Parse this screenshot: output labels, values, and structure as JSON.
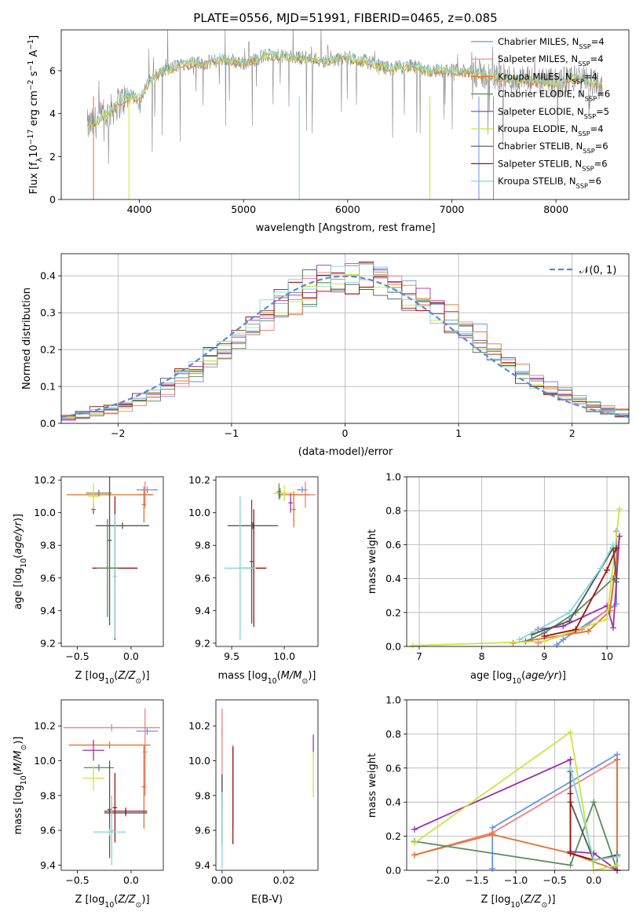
{
  "colors": [
    "#6495ed",
    "#f08080",
    "#e8702a",
    "#5b8a5b",
    "#9b30a8",
    "#c8e63c",
    "#555555",
    "#a01010",
    "#80d8d8"
  ],
  "chart_data": [
    {
      "id": "spectrum",
      "type": "line",
      "title": "PLATE=0556, MJD=51991, FIBERID=0465, z=0.085",
      "xlabel": "wavelength [Angstrom, rest frame]",
      "ylabel": "Flux [fλ 10⁻¹⁷ erg cm⁻² s⁻¹ A⁻¹]",
      "xlim": [
        3250,
        8700
      ],
      "ylim": [
        0,
        7.9
      ],
      "xticks": [
        4000,
        5000,
        6000,
        7000,
        8000
      ],
      "yticks": [
        0,
        2,
        4,
        6
      ],
      "grid": false,
      "legend_position": "top-right",
      "series": [
        {
          "name": "Chabrier MILES, N_SSP=4"
        },
        {
          "name": "Salpeter MILES, N_SSP=4"
        },
        {
          "name": "Kroupa MILES, N_SSP=4"
        },
        {
          "name": "Chabrier ELODIE, N_SSP=6"
        },
        {
          "name": "Salpeter ELODIE, N_SSP=5"
        },
        {
          "name": "Kroupa ELODIE, N_SSP=4"
        },
        {
          "name": "Chabrier STELIB, N_SSP=6"
        },
        {
          "name": "Salpeter STELIB, N_SSP=6"
        },
        {
          "name": "Kroupa STELIB, N_SSP=6"
        }
      ],
      "continuum": {
        "x": [
          3500,
          3550,
          3600,
          3700,
          3800,
          3900,
          4000,
          4100,
          4200,
          4300,
          4400,
          4500,
          4600,
          4800,
          5000,
          5200,
          5400,
          5600,
          5800,
          6000,
          6200,
          6400,
          6600,
          6800,
          7000,
          7200,
          7400,
          7600,
          7800,
          8000,
          8200,
          8300,
          8450
        ],
        "y": [
          3.4,
          3.5,
          3.7,
          4.0,
          4.5,
          4.8,
          4.7,
          5.5,
          5.9,
          6.1,
          6.3,
          6.4,
          6.3,
          6.55,
          6.35,
          6.7,
          6.65,
          6.6,
          6.45,
          6.6,
          6.4,
          6.1,
          6.2,
          6.0,
          6.0,
          5.9,
          5.7,
          5.6,
          5.5,
          5.4,
          5.7,
          5.5,
          5.3
        ]
      }
    },
    {
      "id": "residuals",
      "type": "line",
      "xlabel": "(data-model)/error",
      "ylabel": "Normed distribution",
      "xlim": [
        -2.5,
        2.5
      ],
      "ylim": [
        0,
        0.46
      ],
      "xticks": [
        -2,
        -1,
        0,
        1,
        2
      ],
      "yticks": [
        0.0,
        0.1,
        0.2,
        0.3,
        0.4
      ],
      "grid": true,
      "legend_position": "top-right",
      "legend_label": "𝒩(0, 1)"
    },
    {
      "id": "age-vs-Z",
      "type": "scatter",
      "xlabel": "Z [log10(Z/Z⊙)]",
      "ylabel": "age  [log10(age/yr)]",
      "xlim": [
        -0.65,
        0.3
      ],
      "ylim": [
        9.18,
        10.22
      ],
      "xticks": [
        -0.5,
        0.0
      ],
      "yticks": [
        9.2,
        9.4,
        9.6,
        9.8,
        10.0,
        10.2
      ],
      "grid": false,
      "points": [
        {
          "s": 0,
          "x": 0.15,
          "y": 10.14,
          "xerr": 0.1,
          "yerr": 0.02
        },
        {
          "s": 1,
          "x": 0.13,
          "y": 10.11,
          "xerr": 0.08,
          "yerr": 0.08
        },
        {
          "s": 2,
          "x": -0.2,
          "y": 10.11,
          "xerr": 0.4,
          "yerr": 0.02
        },
        {
          "s": 2,
          "x": 0.12,
          "y": 10.05,
          "xerr": 0.02,
          "yerr": 0.11
        },
        {
          "s": 3,
          "x": -0.3,
          "y": 10.12,
          "xerr": 0.12,
          "yerr": 0.02
        },
        {
          "s": 4,
          "x": -0.35,
          "y": 10.02,
          "xerr": 0.02,
          "yerr": 0.03
        },
        {
          "s": 5,
          "x": -0.35,
          "y": 10.1,
          "xerr": 0.05,
          "yerr": 0.08
        },
        {
          "s": 6,
          "x": -0.2,
          "y": 9.83,
          "xerr": 0.02,
          "yerr": 0.52
        },
        {
          "s": 6,
          "x": -0.08,
          "y": 9.92,
          "xerr": 0.25,
          "yerr": 0.02
        },
        {
          "s": 7,
          "x": -0.15,
          "y": 9.66,
          "xerr": 0.21,
          "yerr": 0.44
        },
        {
          "s": 8,
          "x": -0.15,
          "y": 9.61,
          "xerr": 0.02,
          "yerr": 0.38
        },
        {
          "s": 3,
          "x": -0.22,
          "y": 9.66,
          "xerr": 0.1,
          "yerr": 0.3
        }
      ]
    },
    {
      "id": "age-vs-mass",
      "type": "scatter",
      "xlabel": "mass [log10(M/M⊙)]",
      "ylabel": "",
      "xlim": [
        9.35,
        10.32
      ],
      "ylim": [
        9.18,
        10.22
      ],
      "xticks": [
        9.5,
        10.0
      ],
      "yticks": [
        9.2,
        9.4,
        9.6,
        9.8,
        10.0,
        10.2
      ],
      "grid": false,
      "points": [
        {
          "s": 0,
          "x": 10.17,
          "y": 10.14,
          "xerr": 0.05,
          "yerr": 0.02
        },
        {
          "s": 1,
          "x": 10.2,
          "y": 10.11,
          "xerr": 0.1,
          "yerr": 0.08
        },
        {
          "s": 2,
          "x": 10.09,
          "y": 10.11,
          "xerr": 0.15,
          "yerr": 0.02
        },
        {
          "s": 2,
          "x": 10.09,
          "y": 10.02,
          "xerr": 0.02,
          "yerr": 0.11
        },
        {
          "s": 3,
          "x": 9.96,
          "y": 10.12,
          "xerr": 0.06,
          "yerr": 0.03
        },
        {
          "s": 4,
          "x": 10.06,
          "y": 10.06,
          "xerr": 0.02,
          "yerr": 0.06
        },
        {
          "s": 5,
          "x": 10.0,
          "y": 10.12,
          "xerr": 0.1,
          "yerr": 0.05
        },
        {
          "s": 6,
          "x": 9.7,
          "y": 9.92,
          "xerr": 0.24,
          "yerr": 0.02
        },
        {
          "s": 6,
          "x": 9.69,
          "y": 9.7,
          "xerr": 0.02,
          "yerr": 0.38
        },
        {
          "s": 7,
          "x": 9.71,
          "y": 9.66,
          "xerr": 0.12,
          "yerr": 0.36
        },
        {
          "s": 8,
          "x": 9.58,
          "y": 9.66,
          "xerr": 0.15,
          "yerr": 0.44
        },
        {
          "s": 3,
          "x": 9.95,
          "y": 10.13,
          "xerr": 0.02,
          "yerr": 0.05
        }
      ]
    },
    {
      "id": "weight-vs-age",
      "type": "line",
      "xlabel": "age  [log10(age/yr)]",
      "ylabel": "mass weight",
      "xlim": [
        6.8,
        10.35
      ],
      "ylim": [
        0,
        1.0
      ],
      "xticks": [
        7,
        8,
        9,
        10
      ],
      "yticks": [
        0.0,
        0.2,
        0.4,
        0.6,
        0.8,
        1.0
      ],
      "grid": true,
      "series": [
        {
          "x": [
            9.2,
            9.3,
            10.15,
            10.15
          ],
          "y": [
            0.01,
            0.04,
            0.25,
            0.68
          ]
        },
        {
          "x": [
            8.9,
            9.6,
            10.05,
            10.2
          ],
          "y": [
            0.02,
            0.1,
            0.23,
            0.65
          ]
        },
        {
          "x": [
            8.5,
            9.7,
            10.05,
            10.2
          ],
          "y": [
            0.02,
            0.09,
            0.21,
            0.65
          ]
        },
        {
          "x": [
            8.7,
            9.0,
            9.5,
            10.1,
            10.15
          ],
          "y": [
            0.03,
            0.08,
            0.2,
            0.4,
            0.38
          ]
        },
        {
          "x": [
            8.9,
            9.3,
            10.0,
            10.1,
            10.2
          ],
          "y": [
            0.1,
            0.12,
            0.24,
            0.11,
            0.65
          ]
        },
        {
          "x": [
            6.9,
            9.0,
            10.0,
            10.2
          ],
          "y": [
            0.005,
            0.03,
            0.16,
            0.81
          ]
        },
        {
          "x": [
            8.8,
            9.4,
            10.1,
            10.15
          ],
          "y": [
            0.07,
            0.15,
            0.58,
            0.4
          ]
        },
        {
          "x": [
            9.0,
            9.5,
            10.0,
            10.15
          ],
          "y": [
            0.06,
            0.1,
            0.45,
            0.58
          ]
        },
        {
          "x": [
            8.6,
            9.4,
            9.9,
            10.1
          ],
          "y": [
            0.04,
            0.2,
            0.46,
            0.6
          ]
        }
      ]
    },
    {
      "id": "mass-vs-Z",
      "type": "scatter",
      "xlabel": "Z [log10(Z/Z⊙)]",
      "ylabel": "mass [log10(M/M⊙)]",
      "xlim": [
        -0.65,
        0.3
      ],
      "ylim": [
        9.37,
        10.35
      ],
      "xticks": [
        -0.5,
        0.0
      ],
      "yticks": [
        9.4,
        9.6,
        9.8,
        10.0,
        10.2
      ],
      "grid": false,
      "points": [
        {
          "s": 0,
          "x": 0.15,
          "y": 10.17,
          "xerr": 0.1,
          "yerr": 0.02
        },
        {
          "s": 1,
          "x": -0.18,
          "y": 10.19,
          "xerr": 0.45,
          "yerr": 0.02
        },
        {
          "s": 1,
          "x": 0.13,
          "y": 10.05,
          "xerr": 0.02,
          "yerr": 0.25
        },
        {
          "s": 2,
          "x": -0.2,
          "y": 10.09,
          "xerr": 0.38,
          "yerr": 0.02
        },
        {
          "s": 2,
          "x": 0.12,
          "y": 9.85,
          "xerr": 0.02,
          "yerr": 0.24
        },
        {
          "s": 3,
          "x": -0.3,
          "y": 9.96,
          "xerr": 0.14,
          "yerr": 0.02
        },
        {
          "s": 4,
          "x": -0.35,
          "y": 10.06,
          "xerr": 0.1,
          "yerr": 0.06
        },
        {
          "s": 5,
          "x": -0.35,
          "y": 9.9,
          "xerr": 0.1,
          "yerr": 0.07
        },
        {
          "s": 6,
          "x": -0.05,
          "y": 9.7,
          "xerr": 0.2,
          "yerr": 0.02
        },
        {
          "s": 6,
          "x": -0.2,
          "y": 9.72,
          "xerr": 0.02,
          "yerr": 0.28
        },
        {
          "s": 7,
          "x": -0.05,
          "y": 9.71,
          "xerr": 0.2,
          "yerr": 0.02
        },
        {
          "s": 7,
          "x": -0.15,
          "y": 9.73,
          "xerr": 0.02,
          "yerr": 0.2
        },
        {
          "s": 8,
          "x": -0.2,
          "y": 9.59,
          "xerr": 0.15,
          "yerr": 0.02
        },
        {
          "s": 8,
          "x": -0.18,
          "y": 9.6,
          "xerr": 0.02,
          "yerr": 0.2
        }
      ]
    },
    {
      "id": "mass-vs-EBV",
      "type": "scatter",
      "xlabel": "E(B-V)",
      "ylabel": "",
      "xlim": [
        -0.002,
        0.031
      ],
      "ylim": [
        9.37,
        10.35
      ],
      "xticks": [
        0.0,
        0.02
      ],
      "yticks": [
        9.4,
        9.6,
        9.8,
        10.0,
        10.2
      ],
      "grid": false,
      "points": [
        {
          "s": 0,
          "x": 0.0,
          "y": 10.17,
          "xerr": 0.0,
          "yerr": 0.02
        },
        {
          "s": 1,
          "x": 0.0,
          "y": 10.0,
          "xerr": 0.0,
          "yerr": 0.3
        },
        {
          "s": 2,
          "x": 0.0035,
          "y": 9.85,
          "xerr": 0.0,
          "yerr": 0.24
        },
        {
          "s": 3,
          "x": 0.0,
          "y": 9.85,
          "xerr": 0.0,
          "yerr": 0.07
        },
        {
          "s": 4,
          "x": 0.0295,
          "y": 10.1,
          "xerr": 0.0,
          "yerr": 0.05
        },
        {
          "s": 5,
          "x": 0.0295,
          "y": 9.92,
          "xerr": 0.0,
          "yerr": 0.13
        },
        {
          "s": 6,
          "x": 0.0,
          "y": 9.72,
          "xerr": 0.0,
          "yerr": 0.2
        },
        {
          "s": 7,
          "x": 0.0035,
          "y": 9.8,
          "xerr": 0.0,
          "yerr": 0.28
        },
        {
          "s": 8,
          "x": 0.0,
          "y": 9.6,
          "xerr": 0.0,
          "yerr": 0.22
        }
      ]
    },
    {
      "id": "weight-vs-Z",
      "type": "line",
      "xlabel": "Z [log10(Z/Z⊙)]",
      "ylabel": "mass weight",
      "xlim": [
        -2.4,
        0.45
      ],
      "ylim": [
        0,
        1.0
      ],
      "xticks": [
        -2.0,
        -1.5,
        -1.0,
        -0.5,
        0.0
      ],
      "yticks": [
        0.0,
        0.2,
        0.4,
        0.6,
        0.8,
        1.0
      ],
      "grid": true,
      "series": [
        {
          "x": [
            -1.3,
            -1.3,
            0.3,
            0.3
          ],
          "y": [
            0.01,
            0.25,
            0.68,
            0.0
          ]
        },
        {
          "x": [
            -2.3,
            -1.3,
            0.3,
            0.3
          ],
          "y": [
            0.09,
            0.22,
            0.65,
            0.0
          ]
        },
        {
          "x": [
            -2.3,
            -1.3,
            -0.3,
            0.3,
            0.3
          ],
          "y": [
            0.09,
            0.21,
            0.1,
            0.0,
            0.65
          ]
        },
        {
          "x": [
            -2.3,
            -0.3,
            0.0,
            0.3,
            0.3
          ],
          "y": [
            0.17,
            0.03,
            0.4,
            0.0,
            0.09
          ]
        },
        {
          "x": [
            -2.3,
            -0.3,
            -0.3,
            0.0,
            0.3
          ],
          "y": [
            0.24,
            0.65,
            0.11,
            0.1,
            0.0
          ]
        },
        {
          "x": [
            -2.3,
            -0.3,
            0.0,
            0.3
          ],
          "y": [
            0.16,
            0.81,
            0.0,
            0.03
          ]
        },
        {
          "x": [
            -0.3,
            -0.3,
            0.0,
            0.3
          ],
          "y": [
            0.58,
            0.4,
            0.06,
            0.09
          ]
        },
        {
          "x": [
            -0.3,
            -0.3,
            0.0,
            0.3
          ],
          "y": [
            0.45,
            0.1,
            0.06,
            0.08
          ]
        },
        {
          "x": [
            -0.3,
            0.0,
            0.3
          ],
          "y": [
            0.6,
            0.06,
            0.08
          ]
        }
      ]
    }
  ]
}
